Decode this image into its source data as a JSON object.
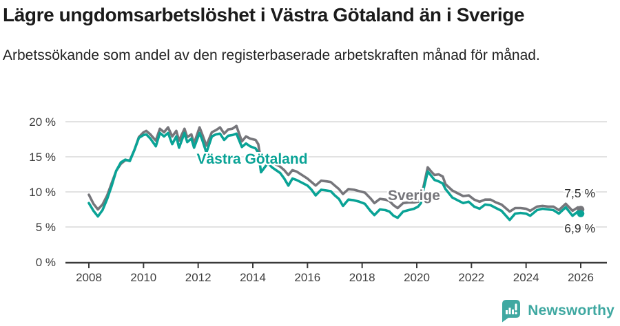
{
  "header": {
    "title": "Lägre ungdomsarbetslöshet i Västra Götaland än i Sverige",
    "subtitle": "Arbetssökande som andel av den registerbaserade arbetskraften månad för månad."
  },
  "footer": {
    "brand": "Newsworthy",
    "logo_icon": "speech-bubble-bar-chart-icon",
    "brand_color": "#3fa8a1"
  },
  "colors": {
    "vastra_gotaland": "#0aa396",
    "sverige": "#76767b",
    "grid": "#d9d9d9",
    "axis": "#3a3a3a",
    "tick_label": "#3d3d3d",
    "annotation": "#2b2b2b",
    "halo": "#ffffff"
  },
  "chart_data": {
    "type": "line",
    "title": "",
    "xlabel": "",
    "ylabel": "",
    "grid": "horizontal",
    "ylim": [
      0,
      20
    ],
    "y_ticks": [
      {
        "value": 0,
        "label": "0 %"
      },
      {
        "value": 5,
        "label": "5 %"
      },
      {
        "value": 10,
        "label": "10 %"
      },
      {
        "value": 15,
        "label": "15 %"
      },
      {
        "value": 20,
        "label": "20 %"
      }
    ],
    "x_ticks": [
      2008,
      2010,
      2012,
      2014,
      2016,
      2018,
      2020,
      2022,
      2024,
      2026
    ],
    "x": [
      2008.0,
      2008.17,
      2008.33,
      2008.5,
      2008.67,
      2008.83,
      2009.0,
      2009.17,
      2009.33,
      2009.5,
      2009.67,
      2009.83,
      2010.0,
      2010.1,
      2010.25,
      2010.45,
      2010.6,
      2010.75,
      2010.9,
      2011.05,
      2011.2,
      2011.3,
      2011.5,
      2011.6,
      2011.75,
      2011.85,
      2012.05,
      2012.15,
      2012.3,
      2012.5,
      2012.65,
      2012.8,
      2012.95,
      2013.1,
      2013.25,
      2013.4,
      2013.6,
      2013.75,
      2013.9,
      2014.1,
      2014.2,
      2014.3,
      2014.55,
      2014.7,
      2014.85,
      2015.0,
      2015.15,
      2015.3,
      2015.45,
      2015.6,
      2015.8,
      2016.0,
      2016.15,
      2016.3,
      2016.5,
      2016.7,
      2016.85,
      2017.0,
      2017.15,
      2017.3,
      2017.5,
      2017.7,
      2017.9,
      2018.1,
      2018.3,
      2018.45,
      2018.65,
      2018.85,
      2019.0,
      2019.15,
      2019.3,
      2019.5,
      2019.7,
      2019.9,
      2020.05,
      2020.15,
      2020.25,
      2020.4,
      2020.55,
      2020.65,
      2020.8,
      2020.95,
      2021.05,
      2021.3,
      2021.55,
      2021.7,
      2021.9,
      2022.1,
      2022.3,
      2022.5,
      2022.7,
      2022.9,
      2023.1,
      2023.4,
      2023.6,
      2023.8,
      2024.0,
      2024.15,
      2024.4,
      2024.6,
      2024.8,
      2025.0,
      2025.2,
      2025.45,
      2025.7,
      2025.9,
      2026.0
    ],
    "series": [
      {
        "name": "Sverige",
        "color_key": "sverige",
        "end_label": "7,5 %",
        "end_value": 7.5,
        "values": [
          9.6,
          8.3,
          7.5,
          8.2,
          9.5,
          11.2,
          13.0,
          14.0,
          14.5,
          14.5,
          16.0,
          17.8,
          18.5,
          18.7,
          18.2,
          17.3,
          19.0,
          18.5,
          19.2,
          17.9,
          18.7,
          17.3,
          19.0,
          17.8,
          18.2,
          16.9,
          19.2,
          18.2,
          16.6,
          18.5,
          18.8,
          19.2,
          18.3,
          18.9,
          19.0,
          19.4,
          17.2,
          17.9,
          17.6,
          17.4,
          16.8,
          14.4,
          14.8,
          14.3,
          13.9,
          13.6,
          13.1,
          12.4,
          13.1,
          12.9,
          12.4,
          11.9,
          11.4,
          10.9,
          11.6,
          11.5,
          11.4,
          10.9,
          10.4,
          9.7,
          10.4,
          10.3,
          10.1,
          9.9,
          9.1,
          8.4,
          9.0,
          8.9,
          8.7,
          8.1,
          7.7,
          8.4,
          8.5,
          8.5,
          8.6,
          9.0,
          10.8,
          13.5,
          12.8,
          12.4,
          12.5,
          12.2,
          11.1,
          10.2,
          9.7,
          9.4,
          9.5,
          8.9,
          8.6,
          8.9,
          8.9,
          8.5,
          8.2,
          7.2,
          7.7,
          7.7,
          7.6,
          7.3,
          7.9,
          8.0,
          7.9,
          7.9,
          7.4,
          8.3,
          7.3,
          7.8,
          7.5
        ]
      },
      {
        "name": "Västra Götaland",
        "color_key": "vastra_gotaland",
        "end_label": "6,9 %",
        "end_value": 6.9,
        "values": [
          8.4,
          7.3,
          6.5,
          7.4,
          9.0,
          10.8,
          13.0,
          14.2,
          14.6,
          14.4,
          16.0,
          17.7,
          18.1,
          18.2,
          17.6,
          16.5,
          18.4,
          17.9,
          18.4,
          16.8,
          17.9,
          16.3,
          18.4,
          17.1,
          17.6,
          16.3,
          18.4,
          17.4,
          15.6,
          17.9,
          18.2,
          18.3,
          17.4,
          18.0,
          18.1,
          18.3,
          16.4,
          16.9,
          16.5,
          16.2,
          15.6,
          12.8,
          14.1,
          13.5,
          13.1,
          12.7,
          11.9,
          10.9,
          11.9,
          11.7,
          11.3,
          10.9,
          10.3,
          9.5,
          10.3,
          10.2,
          10.1,
          9.5,
          9.0,
          8.0,
          8.9,
          8.8,
          8.6,
          8.3,
          7.3,
          6.7,
          7.5,
          7.4,
          7.2,
          6.6,
          6.3,
          7.2,
          7.4,
          7.6,
          7.9,
          8.4,
          10.4,
          12.9,
          12.2,
          11.7,
          11.5,
          11.2,
          10.4,
          9.2,
          8.7,
          8.4,
          8.6,
          7.9,
          7.6,
          8.2,
          8.1,
          7.7,
          7.3,
          6.0,
          6.9,
          7.0,
          6.9,
          6.6,
          7.4,
          7.6,
          7.5,
          7.4,
          6.9,
          7.8,
          6.6,
          7.2,
          6.9
        ]
      }
    ]
  }
}
